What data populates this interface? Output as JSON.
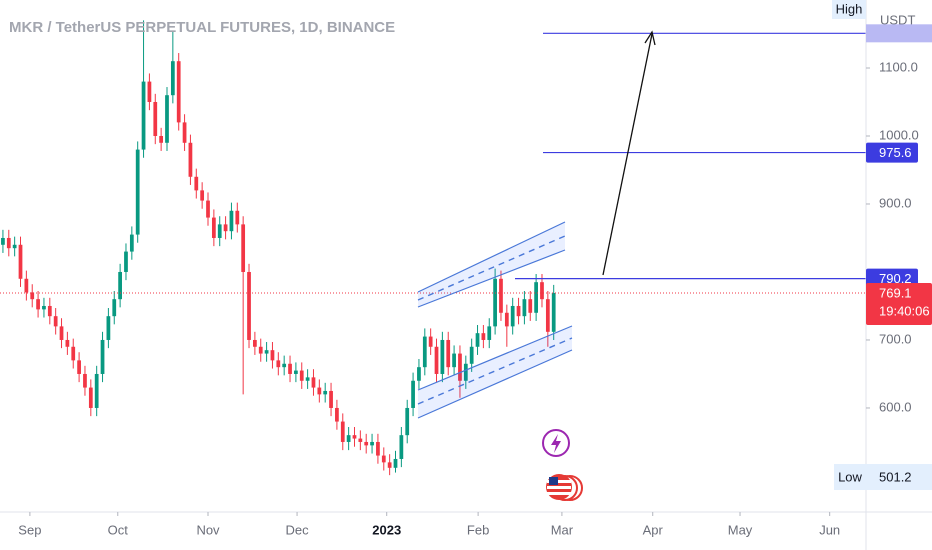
{
  "chart_data": {
    "type": "candlestick",
    "title": "MKR / TetherUS PERPETUAL FUTURES, 1D, BINANCE",
    "y_axis_label": "USDT",
    "up_color": "#089981",
    "down_color": "#f23645",
    "level_color": "#3c3ce0",
    "xlim": [
      -0.5,
      147.3
    ],
    "ylim": [
      447,
      1200
    ],
    "xticks": [
      {
        "value": 4.6,
        "label": "Sep"
      },
      {
        "value": 19.6,
        "label": "Oct"
      },
      {
        "value": 35.0,
        "label": "Nov"
      },
      {
        "value": 50.2,
        "label": "Dec"
      },
      {
        "value": 65.5,
        "label": "2023"
      },
      {
        "value": 81.1,
        "label": "Feb"
      },
      {
        "value": 95.4,
        "label": "Mar"
      },
      {
        "value": 110.9,
        "label": "Apr"
      },
      {
        "value": 125.8,
        "label": "May"
      },
      {
        "value": 141.1,
        "label": "Jun"
      }
    ],
    "yticks": [
      {
        "value": 1100,
        "label": "1100.0"
      },
      {
        "value": 1000,
        "label": "1000.0"
      },
      {
        "value": 900,
        "label": "900.0"
      },
      {
        "value": 700,
        "label": "700.0"
      },
      {
        "value": 600,
        "label": "600.0"
      }
    ],
    "open": [
      840,
      850,
      835,
      840,
      790,
      770,
      760,
      745,
      750,
      735,
      720,
      700,
      690,
      670,
      650,
      630,
      600,
      650,
      700,
      735,
      760,
      800,
      830,
      855,
      980,
      1080,
      1050,
      1000,
      990,
      1060,
      1110,
      1020,
      990,
      940,
      920,
      905,
      880,
      850,
      870,
      860,
      890,
      870,
      800,
      700,
      690,
      680,
      685,
      670,
      660,
      665,
      650,
      655,
      640,
      645,
      630,
      620,
      625,
      600,
      580,
      550,
      560,
      555,
      550,
      545,
      550,
      530,
      520,
      512,
      525,
      560,
      600,
      640,
      660,
      705,
      690,
      650,
      700,
      660,
      680,
      640,
      665,
      690,
      710,
      700,
      720,
      790,
      740,
      720,
      750,
      735,
      760,
      740,
      785,
      760,
      712
    ],
    "high": [
      862,
      862,
      852,
      852,
      802,
      782,
      772,
      762,
      762,
      747,
      732,
      712,
      702,
      682,
      662,
      642,
      662,
      712,
      747,
      772,
      812,
      842,
      867,
      992,
      1170,
      1092,
      1062,
      1012,
      1072,
      1155,
      1122,
      1032,
      1002,
      952,
      932,
      917,
      892,
      882,
      882,
      902,
      902,
      882,
      812,
      712,
      702,
      697,
      697,
      682,
      677,
      677,
      667,
      667,
      657,
      657,
      642,
      637,
      637,
      612,
      592,
      572,
      572,
      567,
      562,
      562,
      562,
      542,
      532,
      537,
      572,
      612,
      652,
      672,
      717,
      717,
      702,
      712,
      712,
      692,
      692,
      677,
      702,
      722,
      722,
      732,
      805,
      802,
      752,
      762,
      762,
      772,
      772,
      797,
      797,
      772,
      781
    ],
    "low": [
      828,
      823,
      823,
      778,
      758,
      748,
      733,
      733,
      723,
      708,
      688,
      678,
      658,
      638,
      618,
      588,
      588,
      638,
      688,
      723,
      748,
      788,
      818,
      843,
      968,
      1038,
      988,
      978,
      978,
      1048,
      1008,
      978,
      928,
      908,
      893,
      868,
      838,
      838,
      848,
      848,
      858,
      620,
      688,
      678,
      668,
      668,
      658,
      648,
      648,
      638,
      638,
      628,
      628,
      618,
      608,
      608,
      588,
      568,
      538,
      538,
      543,
      538,
      533,
      533,
      518,
      508,
      501.2,
      505,
      513,
      548,
      588,
      628,
      648,
      678,
      638,
      638,
      648,
      648,
      615,
      628,
      653,
      678,
      688,
      688,
      708,
      728,
      690,
      708,
      723,
      723,
      728,
      728,
      748,
      690,
      700
    ],
    "close": [
      850,
      835,
      840,
      790,
      770,
      760,
      745,
      750,
      735,
      720,
      700,
      690,
      670,
      650,
      630,
      600,
      650,
      700,
      735,
      760,
      800,
      830,
      855,
      980,
      1080,
      1050,
      1000,
      990,
      1060,
      1110,
      1020,
      990,
      940,
      920,
      905,
      880,
      850,
      870,
      860,
      890,
      870,
      800,
      700,
      690,
      680,
      685,
      670,
      660,
      665,
      650,
      655,
      640,
      645,
      630,
      620,
      625,
      600,
      580,
      550,
      560,
      555,
      550,
      545,
      550,
      530,
      520,
      512,
      525,
      560,
      600,
      640,
      660,
      705,
      690,
      650,
      700,
      660,
      680,
      640,
      665,
      690,
      710,
      700,
      720,
      790,
      740,
      720,
      750,
      735,
      760,
      740,
      785,
      760,
      712,
      769.1
    ],
    "levels": [
      1151,
      975.6,
      790.2
    ],
    "countdown": "19:40:06",
    "high_tag": "High",
    "low_tag": "Low"
  }
}
